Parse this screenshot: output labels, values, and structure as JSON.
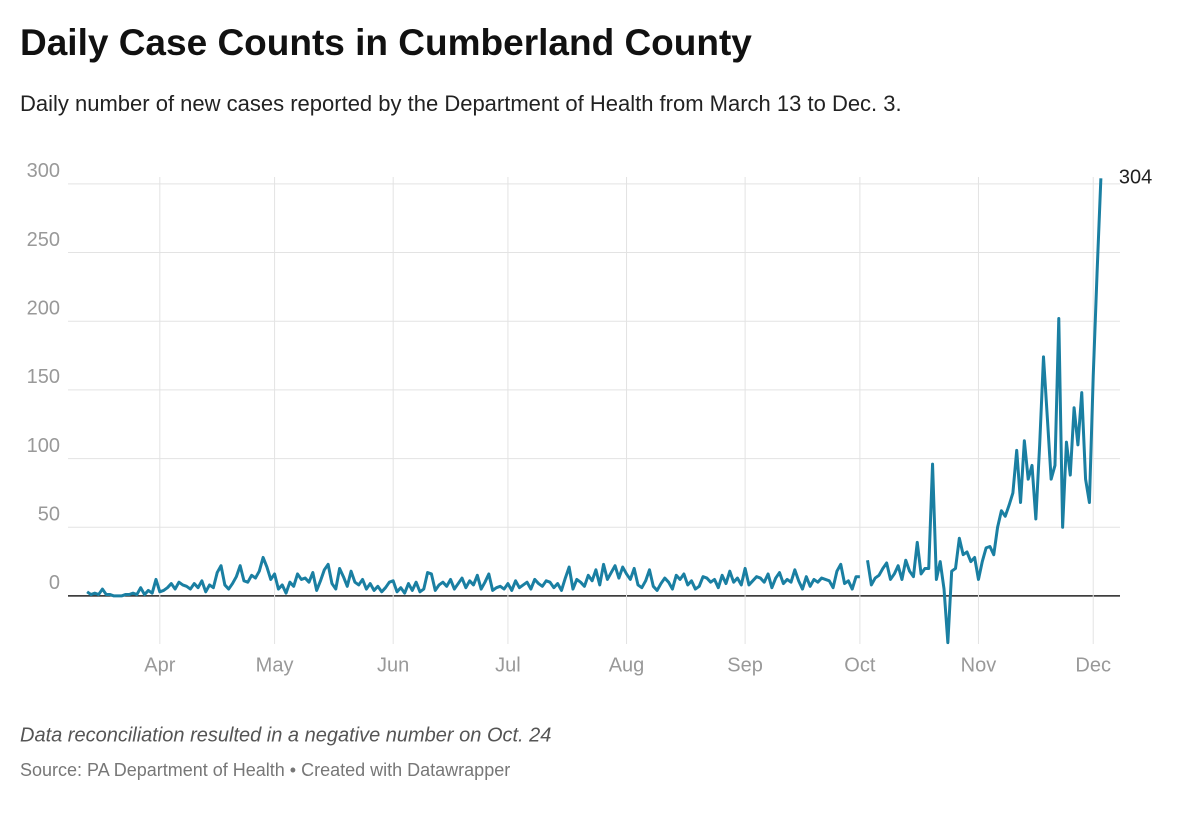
{
  "chart_data": {
    "type": "line",
    "title": "Daily Case Counts in Cumberland County",
    "subtitle": "Daily number of new cases reported by the Department of Health from March 13 to Dec. 3.",
    "note": "Data reconciliation resulted in a negative number on Oct. 24",
    "source": "Source: PA Department of Health • Created with Datawrapper",
    "x": [
      "03-13",
      "03-14",
      "03-15",
      "03-16",
      "03-17",
      "03-18",
      "03-19",
      "03-20",
      "03-21",
      "03-22",
      "03-23",
      "03-24",
      "03-25",
      "03-26",
      "03-27",
      "03-28",
      "03-29",
      "03-30",
      "03-31",
      "04-01",
      "04-02",
      "04-03",
      "04-04",
      "04-05",
      "04-06",
      "04-07",
      "04-08",
      "04-09",
      "04-10",
      "04-11",
      "04-12",
      "04-13",
      "04-14",
      "04-15",
      "04-16",
      "04-17",
      "04-18",
      "04-19",
      "04-20",
      "04-21",
      "04-22",
      "04-23",
      "04-24",
      "04-25",
      "04-26",
      "04-27",
      "04-28",
      "04-29",
      "04-30",
      "05-01",
      "05-02",
      "05-03",
      "05-04",
      "05-05",
      "05-06",
      "05-07",
      "05-08",
      "05-09",
      "05-10",
      "05-11",
      "05-12",
      "05-13",
      "05-14",
      "05-15",
      "05-16",
      "05-17",
      "05-18",
      "05-19",
      "05-20",
      "05-21",
      "05-22",
      "05-23",
      "05-24",
      "05-25",
      "05-26",
      "05-27",
      "05-28",
      "05-29",
      "05-30",
      "05-31",
      "06-01",
      "06-02",
      "06-03",
      "06-04",
      "06-05",
      "06-06",
      "06-07",
      "06-08",
      "06-09",
      "06-10",
      "06-11",
      "06-12",
      "06-13",
      "06-14",
      "06-15",
      "06-16",
      "06-17",
      "06-18",
      "06-19",
      "06-20",
      "06-21",
      "06-22",
      "06-23",
      "06-24",
      "06-25",
      "06-26",
      "06-27",
      "06-28",
      "06-29",
      "06-30",
      "07-01",
      "07-02",
      "07-03",
      "07-04",
      "07-05",
      "07-06",
      "07-07",
      "07-08",
      "07-09",
      "07-10",
      "07-11",
      "07-12",
      "07-13",
      "07-14",
      "07-15",
      "07-16",
      "07-17",
      "07-18",
      "07-19",
      "07-20",
      "07-21",
      "07-22",
      "07-23",
      "07-24",
      "07-25",
      "07-26",
      "07-27",
      "07-28",
      "07-29",
      "07-30",
      "07-31",
      "08-01",
      "08-02",
      "08-03",
      "08-04",
      "08-05",
      "08-06",
      "08-07",
      "08-08",
      "08-09",
      "08-10",
      "08-11",
      "08-12",
      "08-13",
      "08-14",
      "08-15",
      "08-16",
      "08-17",
      "08-18",
      "08-19",
      "08-20",
      "08-21",
      "08-22",
      "08-23",
      "08-24",
      "08-25",
      "08-26",
      "08-27",
      "08-28",
      "08-29",
      "08-30",
      "08-31",
      "09-01",
      "09-02",
      "09-03",
      "09-04",
      "09-05",
      "09-06",
      "09-07",
      "09-08",
      "09-09",
      "09-10",
      "09-11",
      "09-12",
      "09-13",
      "09-14",
      "09-15",
      "09-16",
      "09-17",
      "09-18",
      "09-19",
      "09-20",
      "09-21",
      "09-22",
      "09-23",
      "09-24",
      "09-25",
      "09-26",
      "09-27",
      "09-28",
      "09-29",
      "09-30",
      "10-01",
      "10-02",
      "10-03",
      "10-04",
      "10-05",
      "10-06",
      "10-07",
      "10-08",
      "10-09",
      "10-10",
      "10-11",
      "10-12",
      "10-13",
      "10-14",
      "10-15",
      "10-16",
      "10-17",
      "10-18",
      "10-19",
      "10-20",
      "10-21",
      "10-22",
      "10-23",
      "10-24",
      "10-25",
      "10-26",
      "10-27",
      "10-28",
      "10-29",
      "10-30",
      "10-31",
      "11-01",
      "11-02",
      "11-03",
      "11-04",
      "11-05",
      "11-06",
      "11-07",
      "11-08",
      "11-09",
      "11-10",
      "11-11",
      "11-12",
      "11-13",
      "11-14",
      "11-15",
      "11-16",
      "11-17",
      "11-18",
      "11-19",
      "11-20",
      "11-21",
      "11-22",
      "11-23",
      "11-24",
      "11-25",
      "11-26",
      "11-27",
      "11-28",
      "11-29",
      "11-30",
      "12-01",
      "12-02",
      "12-03"
    ],
    "series": [
      {
        "color": "#1a7fa2",
        "values": [
          3,
          1,
          2,
          1,
          5,
          1,
          1,
          0,
          0,
          0,
          1,
          1,
          2,
          1,
          6,
          1,
          4,
          2,
          12,
          3,
          4,
          6,
          9,
          5,
          10,
          8,
          7,
          5,
          9,
          6,
          11,
          3,
          8,
          6,
          17,
          22,
          8,
          5,
          9,
          14,
          22,
          11,
          10,
          15,
          13,
          18,
          28,
          21,
          12,
          16,
          5,
          8,
          2,
          10,
          7,
          16,
          12,
          13,
          10,
          17,
          4,
          11,
          19,
          23,
          9,
          5,
          20,
          14,
          7,
          18,
          10,
          8,
          12,
          5,
          9,
          4,
          7,
          3,
          6,
          10,
          11,
          3,
          6,
          2,
          9,
          4,
          10,
          3,
          5,
          17,
          16,
          4,
          8,
          10,
          7,
          12,
          5,
          9,
          13,
          6,
          11,
          8,
          15,
          5,
          10,
          16,
          4,
          6,
          7,
          5,
          9,
          4,
          11,
          6,
          8,
          10,
          5,
          12,
          9,
          7,
          11,
          10,
          6,
          9,
          4,
          13,
          21,
          5,
          12,
          10,
          7,
          15,
          11,
          19,
          8,
          23,
          12,
          17,
          22,
          13,
          21,
          16,
          12,
          20,
          8,
          6,
          11,
          19,
          7,
          4,
          9,
          13,
          10,
          5,
          15,
          12,
          16,
          8,
          11,
          5,
          7,
          14,
          13,
          10,
          12,
          6,
          15,
          9,
          18,
          10,
          13,
          8,
          20,
          8,
          11,
          14,
          13,
          10,
          16,
          6,
          13,
          17,
          9,
          12,
          10,
          19,
          11,
          5,
          14,
          7,
          12,
          10,
          13,
          12,
          11,
          6,
          18,
          23,
          9,
          11,
          5,
          14,
          14,
          null,
          26,
          8,
          13,
          15,
          20,
          24,
          12,
          16,
          22,
          12,
          26,
          18,
          14,
          39,
          16,
          20,
          20,
          96,
          12,
          25,
          5,
          -34,
          18,
          20,
          42,
          30,
          32,
          25,
          28,
          12,
          25,
          35,
          36,
          30,
          50,
          62,
          58,
          66,
          75,
          106,
          68,
          113,
          85,
          95,
          56,
          110,
          174,
          130,
          85,
          95,
          202,
          50,
          112,
          88,
          137,
          110,
          148,
          85,
          68,
          160,
          235,
          304
        ]
      }
    ],
    "xlim": [
      "03-08",
      "12-08"
    ],
    "xticks": [
      {
        "value": "04-01",
        "label": "Apr"
      },
      {
        "value": "05-01",
        "label": "May"
      },
      {
        "value": "06-01",
        "label": "Jun"
      },
      {
        "value": "07-01",
        "label": "Jul"
      },
      {
        "value": "08-01",
        "label": "Aug"
      },
      {
        "value": "09-01",
        "label": "Sep"
      },
      {
        "value": "10-01",
        "label": "Oct"
      },
      {
        "value": "11-01",
        "label": "Nov"
      },
      {
        "value": "12-01",
        "label": "Dec"
      }
    ],
    "ylim": [
      -35,
      305
    ],
    "yticks": [
      0,
      50,
      100,
      150,
      200,
      250,
      300
    ],
    "grid": true
  }
}
